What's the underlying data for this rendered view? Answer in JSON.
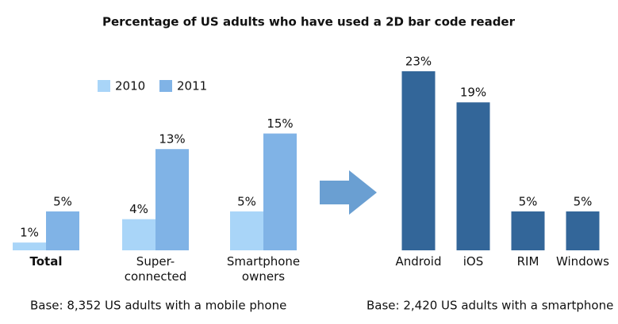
{
  "title": "Percentage of US adults who have used a 2D bar code reader",
  "chart_data": [
    {
      "type": "grouped-bar",
      "categories": [
        "Total",
        "Super-\nconnected",
        "Smartphone\nowners"
      ],
      "series": [
        {
          "name": "2010",
          "color": "#a9d5f8",
          "values": [
            1,
            4,
            5
          ],
          "value_labels": [
            "1%",
            "4%",
            "5%"
          ]
        },
        {
          "name": "2011",
          "color": "#80b3e6",
          "values": [
            5,
            13,
            15
          ],
          "value_labels": [
            "5%",
            "13%",
            "15%"
          ]
        }
      ],
      "note": "Base: 8,352 US adults with a mobile phone"
    },
    {
      "type": "bar",
      "categories": [
        "Android",
        "iOS",
        "RIM",
        "Windows"
      ],
      "values": [
        23,
        19,
        5,
        5
      ],
      "value_labels": [
        "23%",
        "19%",
        "5%",
        "5%"
      ],
      "color": "#336699",
      "note": "Base: 2,420 US adults with a smartphone"
    }
  ]
}
